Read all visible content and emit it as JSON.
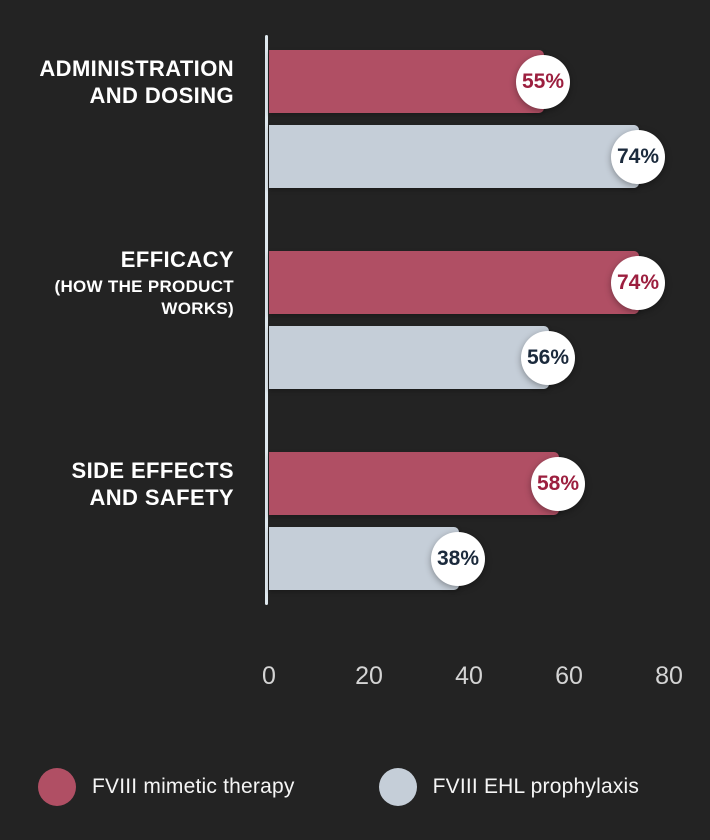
{
  "chart_data": {
    "type": "bar",
    "orientation": "horizontal",
    "title": "",
    "xlabel": "",
    "ylabel": "",
    "xlim": [
      0,
      88
    ],
    "x_ticks": [
      0,
      20,
      40,
      60,
      80
    ],
    "grid": false,
    "legend_position": "bottom",
    "value_suffix": "%",
    "background_color": "#232323",
    "axis_color": "#dfe8ee",
    "categories": [
      {
        "label": "ADMINISTRATION AND DOSING",
        "lines": [
          "ADMINISTRATION",
          "AND DOSING"
        ],
        "sub": ""
      },
      {
        "label": "EFFICACY (HOW THE PRODUCT WORKS)",
        "lines": [
          "EFFICACY"
        ],
        "sub": "(HOW THE PRODUCT WORKS)"
      },
      {
        "label": "SIDE EFFECTS AND SAFETY",
        "lines": [
          "SIDE EFFECTS",
          "AND SAFETY"
        ],
        "sub": ""
      }
    ],
    "series": [
      {
        "key": "mimetic",
        "name": "FVIII mimetic therapy",
        "color": "#b04f64",
        "badge_text_color": "#9c1f3f",
        "values": [
          55,
          74,
          58
        ]
      },
      {
        "key": "ehl",
        "name": "FVIII EHL prophylaxis",
        "color": "#c5ced8",
        "badge_text_color": "#1b2a3c",
        "values": [
          74,
          56,
          38
        ]
      }
    ]
  }
}
